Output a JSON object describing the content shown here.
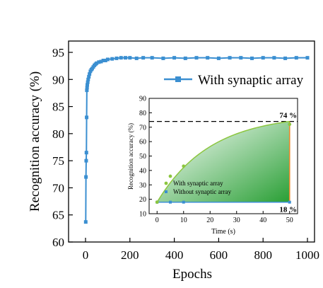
{
  "chart_data": [
    {
      "type": "line",
      "xlabel": "Epochs",
      "ylabel": "Recognition accuracy (%)",
      "xlim": [
        0,
        1000
      ],
      "ylim": [
        60,
        95
      ],
      "xticks": [
        "0",
        "200",
        "400",
        "600",
        "800",
        "1000"
      ],
      "yticks": [
        "60",
        "65",
        "70",
        "75",
        "80",
        "85",
        "90",
        "95"
      ],
      "legend_position": "top-right",
      "grid": false,
      "series": [
        {
          "name": "With synaptic array",
          "color": "#3b8fd1",
          "marker": "square",
          "x": [
            1,
            2,
            3,
            4,
            5,
            6,
            7,
            8,
            10,
            12,
            15,
            18,
            22,
            26,
            30,
            35,
            40,
            45,
            50,
            60,
            70,
            80,
            90,
            100,
            120,
            140,
            160,
            180,
            200,
            230,
            260,
            300,
            350,
            400,
            450,
            500,
            550,
            600,
            650,
            700,
            750,
            800,
            850,
            900,
            950,
            1000
          ],
          "y": [
            63.7,
            72.0,
            75.0,
            76.5,
            83.0,
            88.0,
            88.5,
            89.0,
            89.5,
            90.0,
            90.5,
            91.0,
            91.5,
            91.8,
            92.0,
            92.3,
            92.6,
            92.8,
            93.0,
            93.2,
            93.3,
            93.5,
            93.5,
            93.7,
            93.8,
            93.9,
            94.0,
            94.0,
            94.0,
            93.9,
            94.0,
            94.0,
            93.9,
            94.0,
            93.9,
            94.0,
            94.0,
            93.9,
            94.0,
            94.0,
            93.9,
            94.0,
            94.0,
            93.9,
            94.0,
            94.0
          ]
        }
      ]
    },
    {
      "type": "scatter",
      "xlabel": "Time (s)",
      "ylabel": "Recognition accuracy (%)",
      "xlim": [
        -3,
        53
      ],
      "ylim": [
        10,
        90
      ],
      "xticks": [
        "0",
        "10",
        "20",
        "30",
        "40",
        "50"
      ],
      "yticks": [
        "10",
        "20",
        "30",
        "40",
        "50",
        "60",
        "70",
        "80",
        "90"
      ],
      "legend_position": "bottom-left",
      "annotations": {
        "top_label": "74 %",
        "bottom_label": "18 %",
        "reference_line_y": 74,
        "difference_x": 50
      },
      "series": [
        {
          "name": "With synaptic array",
          "color": "#8cc63f",
          "marker": "circle",
          "fit": true,
          "x": [
            0,
            5,
            10,
            50
          ],
          "y": [
            18,
            36,
            43,
            72
          ]
        },
        {
          "name": "Without synaptic array",
          "color": "#3b8fd1",
          "marker": "square",
          "x": [
            0,
            5,
            10,
            50
          ],
          "y": [
            18,
            18,
            18,
            18
          ]
        }
      ]
    }
  ]
}
